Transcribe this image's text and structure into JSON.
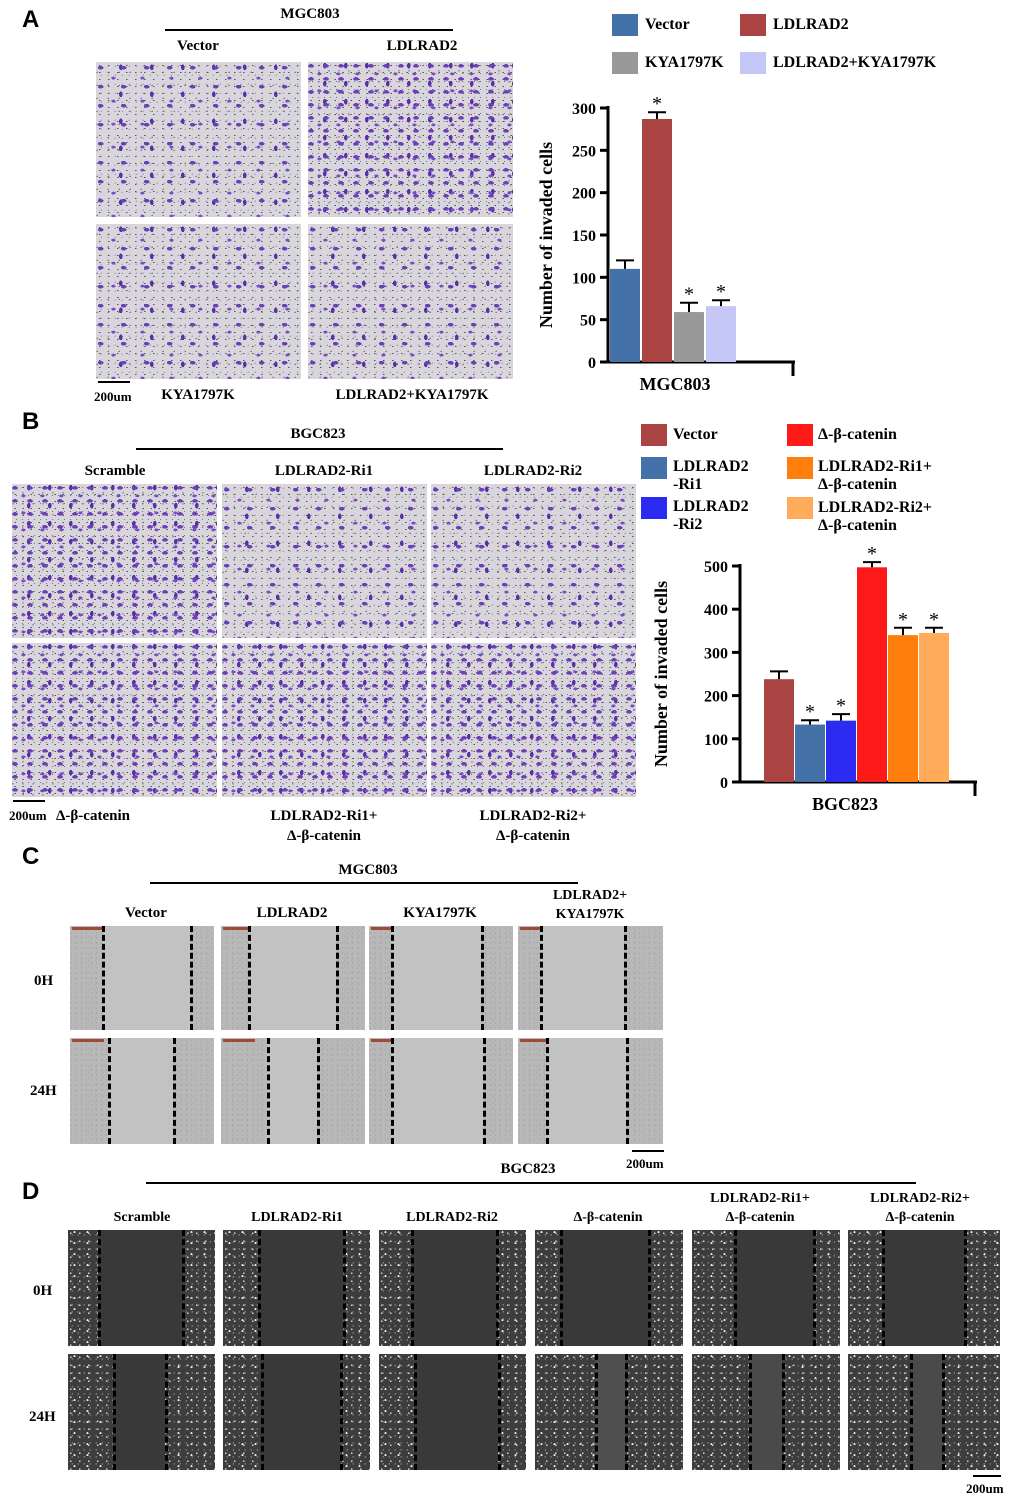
{
  "panels": {
    "a": {
      "letter": "A",
      "cell_line": "MGC803",
      "top_labels": [
        "Vector",
        "LDLRAD2"
      ],
      "bottom_labels": [
        "KYA1797K",
        "LDLRAD2+KYA1797K"
      ],
      "scale": "200um"
    },
    "b": {
      "letter": "B",
      "cell_line": "BGC823",
      "top_labels": [
        "Scramble",
        "LDLRAD2-Ri1",
        "LDLRAD2-Ri2"
      ],
      "bottom_labels": [
        "Δ-β-catenin",
        "LDLRAD2-Ri1+\nΔ-β-catenin",
        "LDLRAD2-Ri2+\nΔ-β-catenin"
      ],
      "scale": "200um"
    },
    "c": {
      "letter": "C",
      "cell_line": "MGC803",
      "col_labels": [
        "Vector",
        "LDLRAD2",
        "KYA1797K",
        "LDLRAD2+\nKYA1797K"
      ],
      "row_labels": [
        "0H",
        "24H"
      ],
      "scale": "200um"
    },
    "d": {
      "letter": "D",
      "cell_line": "BGC823",
      "col_labels": [
        "Scramble",
        "LDLRAD2-Ri1",
        "LDLRAD2-Ri2",
        "Δ-β-catenin",
        "LDLRAD2-Ri1+\nΔ-β-catenin",
        "LDLRAD2-Ri2+\nΔ-β-catenin"
      ],
      "row_labels": [
        "0H",
        "24H"
      ],
      "scale": "200um"
    }
  },
  "chart_data": [
    {
      "type": "bar",
      "categories": [
        "MGC803"
      ],
      "ylabel": "Number of invaded cells",
      "ylim": [
        0,
        300
      ],
      "yticks": [
        0,
        50,
        100,
        150,
        200,
        250,
        300
      ],
      "series": [
        {
          "name": "Vector",
          "color": "#4472a8",
          "value": 110,
          "error": 10,
          "significant": false
        },
        {
          "name": "LDLRAD2",
          "color": "#a94442",
          "value": 287,
          "error": 8,
          "significant": true
        },
        {
          "name": "KYA1797K",
          "color": "#999999",
          "value": 59,
          "error": 11,
          "significant": true
        },
        {
          "name": "LDLRAD2+KYA1797K",
          "color": "#c5c8f7",
          "value": 66,
          "error": 7,
          "significant": true
        }
      ],
      "legend": [
        {
          "name": "Vector",
          "color": "#4472a8"
        },
        {
          "name": "LDLRAD2",
          "color": "#a94442"
        },
        {
          "name": "KYA1797K",
          "color": "#999999"
        },
        {
          "name": "LDLRAD2+KYA1797K",
          "color": "#c5c8f7"
        }
      ],
      "significance_mark": "*"
    },
    {
      "type": "bar",
      "categories": [
        "BGC823"
      ],
      "ylabel": "Number of invaded cells",
      "ylim": [
        0,
        500
      ],
      "yticks": [
        0,
        100,
        200,
        300,
        400,
        500
      ],
      "series": [
        {
          "name": "Vector",
          "color": "#a94442",
          "value": 238,
          "error": 18,
          "significant": false
        },
        {
          "name": "LDLRAD2-Ri1",
          "color": "#4472a8",
          "value": 133,
          "error": 10,
          "significant": true
        },
        {
          "name": "LDLRAD2-Ri2",
          "color": "#2b2bf2",
          "value": 142,
          "error": 15,
          "significant": true
        },
        {
          "name": "Δ-β-catenin",
          "color": "#ff1a1a",
          "value": 497,
          "error": 12,
          "significant": true
        },
        {
          "name": "LDLRAD2-Ri1+Δ-β-catenin",
          "color": "#ff7f0e",
          "value": 340,
          "error": 17,
          "significant": true
        },
        {
          "name": "LDLRAD2-Ri2+Δ-β-catenin",
          "color": "#ffab5a",
          "value": 345,
          "error": 12,
          "significant": true
        }
      ],
      "legend": [
        {
          "name": "Vector",
          "color": "#a94442"
        },
        {
          "name": "Δ-β-catenin",
          "color": "#ff1a1a"
        },
        {
          "name": "LDLRAD2\n-Ri1",
          "color": "#4472a8"
        },
        {
          "name": "LDLRAD2-Ri1+\nΔ-β-catenin",
          "color": "#ff7f0e"
        },
        {
          "name": "LDLRAD2\n-Ri2",
          "color": "#2b2bf2"
        },
        {
          "name": "LDLRAD2-Ri2+\nΔ-β-catenin",
          "color": "#ffab5a"
        }
      ],
      "significance_mark": "*"
    }
  ]
}
